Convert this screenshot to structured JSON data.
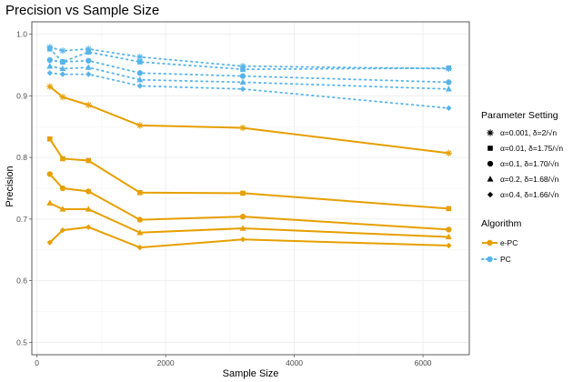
{
  "chart_data": {
    "type": "line",
    "title": "Precision vs Sample Size",
    "xlabel": "Sample Size",
    "ylabel": "Precision",
    "xlim": [
      -80,
      6720
    ],
    "ylim": [
      0.48,
      1.02
    ],
    "x_ticks": [
      0,
      2000,
      4000,
      6000
    ],
    "x_tick_labels": [
      "0",
      "2000",
      "4000",
      "6000"
    ],
    "y_ticks": [
      0.5,
      0.6,
      0.7,
      0.8,
      0.9,
      1.0
    ],
    "y_tick_labels": [
      "0.5",
      "0.6",
      "0.7",
      "0.8",
      "0.9",
      "1.0"
    ],
    "grid": true,
    "x": [
      200,
      400,
      800,
      1600,
      3200,
      6400
    ],
    "legend_position": "right",
    "legend": {
      "parameter_title": "Parameter Setting",
      "algorithm_title": "Algorithm",
      "parameters": [
        {
          "key": "p1",
          "label": "α=0.001, δ=2/√n",
          "shape": "asterisk"
        },
        {
          "key": "p2",
          "label": "α=0.01, δ=1.75/√n",
          "shape": "square"
        },
        {
          "key": "p3",
          "label": "α=0.1, δ=1.70/√n",
          "shape": "circle"
        },
        {
          "key": "p4",
          "label": "α=0.2, δ=1.68/√n",
          "shape": "triangle"
        },
        {
          "key": "p5",
          "label": "α=0.4, δ=1.66/√n",
          "shape": "diamond"
        }
      ],
      "algorithms": [
        {
          "key": "epc",
          "label": "e-PC",
          "color": "#E69F00",
          "dash": "solid"
        },
        {
          "key": "pc",
          "label": "PC",
          "color": "#56B4E9",
          "dash": "dotted"
        }
      ]
    },
    "series": [
      {
        "name": "e-PC α=0.001",
        "algorithm": "epc",
        "param": "p1",
        "values": [
          0.915,
          0.898,
          0.885,
          0.852,
          0.848,
          0.807
        ]
      },
      {
        "name": "e-PC α=0.01",
        "algorithm": "epc",
        "param": "p2",
        "values": [
          0.83,
          0.798,
          0.795,
          0.743,
          0.742,
          0.717
        ]
      },
      {
        "name": "e-PC α=0.1",
        "algorithm": "epc",
        "param": "p3",
        "values": [
          0.773,
          0.75,
          0.745,
          0.699,
          0.704,
          0.683
        ]
      },
      {
        "name": "e-PC α=0.2",
        "algorithm": "epc",
        "param": "p4",
        "values": [
          0.726,
          0.716,
          0.716,
          0.678,
          0.685,
          0.671
        ]
      },
      {
        "name": "e-PC α=0.4",
        "algorithm": "epc",
        "param": "p5",
        "values": [
          0.662,
          0.682,
          0.687,
          0.654,
          0.667,
          0.657
        ]
      },
      {
        "name": "PC α=0.001",
        "algorithm": "pc",
        "param": "p1",
        "values": [
          0.979,
          0.973,
          0.976,
          0.963,
          0.948,
          0.944
        ]
      },
      {
        "name": "PC α=0.01",
        "algorithm": "pc",
        "param": "p2",
        "values": [
          0.976,
          0.955,
          0.971,
          0.955,
          0.943,
          0.945
        ]
      },
      {
        "name": "PC α=0.1",
        "algorithm": "pc",
        "param": "p3",
        "values": [
          0.958,
          0.955,
          0.957,
          0.937,
          0.932,
          0.922
        ]
      },
      {
        "name": "PC α=0.2",
        "algorithm": "pc",
        "param": "p4",
        "values": [
          0.948,
          0.944,
          0.946,
          0.926,
          0.922,
          0.911
        ]
      },
      {
        "name": "PC α=0.4",
        "algorithm": "pc",
        "param": "p5",
        "values": [
          0.937,
          0.935,
          0.935,
          0.916,
          0.911,
          0.88
        ]
      }
    ]
  }
}
